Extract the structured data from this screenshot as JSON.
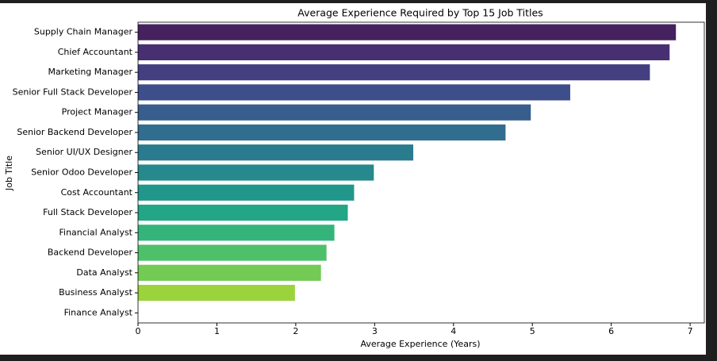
{
  "chart_data": {
    "type": "hbar",
    "title": "Average Experience Required by Top 15 Job Titles",
    "x_label": "Average Experience (Years)",
    "y_label": "Job Title",
    "categories": [
      "Supply Chain Manager",
      "Chief Accountant",
      "Marketing Manager",
      "Senior Full Stack Developer",
      "Project Manager",
      "Senior Backend Developer",
      "Senior UI/UX Designer",
      "Senior Odoo Developer",
      "Cost Accountant",
      "Full Stack Developer",
      "Financial Analyst",
      "Backend Developer",
      "Data Analyst",
      "Business Analyst",
      "Finance Analyst"
    ],
    "values": [
      6.82,
      6.74,
      6.49,
      5.48,
      4.98,
      4.66,
      3.49,
      2.99,
      2.74,
      2.66,
      2.49,
      2.39,
      2.32,
      1.99,
      0
    ],
    "colors": [
      "#46215f",
      "#482f72",
      "#443f80",
      "#3e4e8a",
      "#375e8c",
      "#306d8e",
      "#2a7b8e",
      "#25898d",
      "#21978b",
      "#22a685",
      "#34b47a",
      "#4fc06a",
      "#73ca55",
      "#9bd33c",
      "#c6da21"
    ],
    "xlim": [
      0,
      7.18
    ],
    "xticks": [
      0,
      1,
      2,
      3,
      4,
      5,
      6,
      7
    ]
  }
}
